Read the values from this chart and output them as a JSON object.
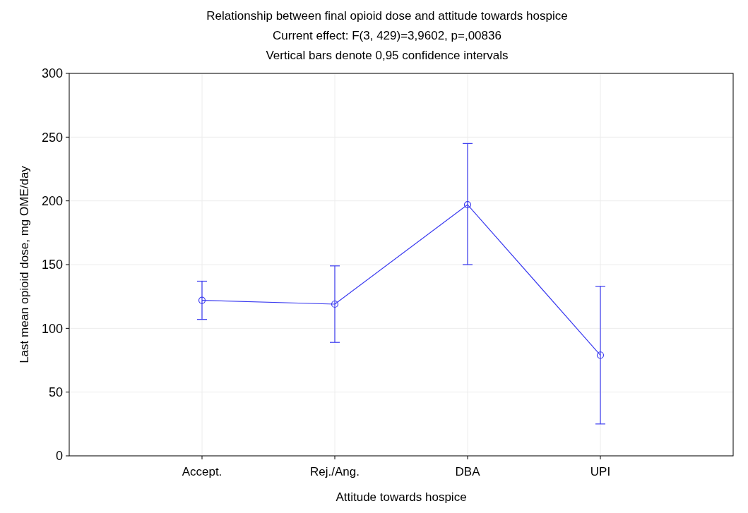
{
  "chart_data": {
    "type": "line",
    "title": "Relationship between final opioid dose and attitude towards hospice",
    "subtitle": "Current effect: F(3, 429)=3,9602, p=,00836",
    "annotations": [
      "Vertical bars denote 0,95 confidence intervals"
    ],
    "xlabel": "Attitude towards hospice",
    "ylabel": "Last mean opioid dose, mg OME/day",
    "categories": [
      "Accept.",
      "Rej./Ang.",
      "DBA",
      "UPI"
    ],
    "series": [
      {
        "color": "#3b3bf0",
        "values": [
          122,
          119,
          197,
          79
        ],
        "errors": [
          [
            107,
            137
          ],
          [
            89,
            149
          ],
          [
            150,
            245
          ],
          [
            25,
            133
          ]
        ]
      }
    ],
    "ylim": [
      0,
      300
    ],
    "yticks": [
      0,
      50,
      100,
      150,
      200,
      250,
      300
    ],
    "grid": true,
    "marker": "circle",
    "line_style": "solid"
  }
}
